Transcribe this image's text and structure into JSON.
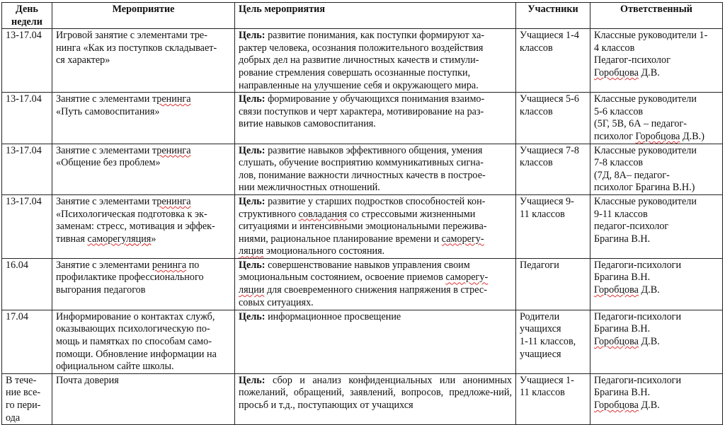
{
  "headers": [
    {
      "lines": [
        "День",
        "недели"
      ]
    },
    {
      "lines": [
        "Мероприятие"
      ]
    },
    {
      "lines": [
        "Цель мероприятия"
      ]
    },
    {
      "lines": [
        "Участники"
      ]
    },
    {
      "lines": [
        "Ответственный"
      ]
    }
  ],
  "goal_label": "Цель:",
  "rows": [
    {
      "date": [
        "13-17.04"
      ],
      "event": [
        "Игровой занятие с элементами тре-",
        "нинга «Как из поступков складывает-",
        "ся характер»"
      ],
      "goal": [
        " развитие понимания, как поступки формируют ха-",
        "рактер человека, осознания положительного воздействия",
        "добрых дел на развитие личностных качеств и стимули-",
        "рование стремления совершать осознанные поступки,",
        "направленные на улучшение себя и окружающего мира."
      ],
      "participants": [
        "Учащиеся 1-4",
        "классов"
      ],
      "responsible": [
        "Классные руководители 1-",
        "4 классов",
        "Педагог-психолог",
        "Горобцова Д.В."
      ]
    },
    {
      "date": [
        "13-17.04"
      ],
      "event": [
        "Занятие с элементами тренинга",
        "«Путь самовоспитания»"
      ],
      "goal": [
        " формирование у обучающихся понимания взаимо-",
        "связи поступков и черт характера, мотивирование на раз-",
        "витие навыков самовоспитания."
      ],
      "participants": [
        "Учащиеся 5-6",
        "классов"
      ],
      "responsible": [
        "Классные руководители",
        " 5-6  классов",
        "(5Г, 5В, 6А – педагог-",
        "психолог  Горобцова Д.В.)"
      ]
    },
    {
      "date": [
        "13-17.04"
      ],
      "event": [
        "Занятие с элементами тренинга",
        "«Общение без проблем»"
      ],
      "goal": [
        " развитие навыков эффективного общения, умения",
        "слушать, обучение восприятию коммуникативных сигна-",
        "лов, понимание важности личностных качеств в построе-",
        "нии межличностных отношений."
      ],
      "participants": [
        "Учащиеся 7-8",
        "классов"
      ],
      "responsible": [
        "Классные руководители",
        "7-8 классов",
        " (7Д, 8А– педагог-",
        "психолог Брагина В.Н.)"
      ]
    },
    {
      "date": [
        "13-17.04"
      ],
      "event": [
        "Занятие с элементами тренинга",
        "«Психологическая подготовка к эк-",
        "заменам: стресс, мотивация и эффек-",
        "тивная саморегуляция»"
      ],
      "goal": [
        " развитие у старших подростков способностей кон-",
        "структивного совладания со стрессовыми жизненными",
        "ситуациями и интенсивными эмоциональными пережива-",
        "ниями, рациональное планирование времени и саморегу-",
        "ляция эмоционального состояния."
      ],
      "participants": [
        "Учащиеся 9-",
        "11 классов"
      ],
      "responsible": [
        "Классные руководители",
        "9-11 классов",
        "педагог-психолог",
        "Брагина В.Н."
      ]
    },
    {
      "date": [
        "16.04"
      ],
      "event": [
        "Занятие с элементами ренинга  по",
        "профилактике профессионального",
        "выгорания педагогов"
      ],
      "goal": [
        " совершенствование навыков управления своим",
        "эмоциональным состоянием, освоение приемов саморегу-",
        "ляции для своевременного снижения напряжения в стрес-",
        "совых ситуациях."
      ],
      "participants": [
        "Педагоги"
      ],
      "responsible": [
        "Педагоги-психологи",
        "Брагина В.Н.",
        "Горобцова Д.В."
      ]
    },
    {
      "date": [
        "17.04"
      ],
      "event": [
        "Информирование о контактах служб,",
        "оказывающих психологическую по-",
        "мощь и памятках по способам само-",
        "помощи. Обновление информации на",
        "официальном сайте школы."
      ],
      "goal": [
        " информационное просвещение"
      ],
      "participants": [
        "Родители",
        "учащихся",
        "1-11 классов,",
        "учащиеся"
      ],
      "responsible": [
        "Педагоги-психологи",
        "Брагина В.Н.",
        "Горобцова Д.В."
      ]
    },
    {
      "date": [
        "В тече-",
        "ние все-",
        "го пери-",
        "ода"
      ],
      "event": [
        "Почта доверия"
      ],
      "goal": [
        " сбор и анализ конфиденциальных или анонимных пожеланий, обращений, заявлений, вопросов, предложе-ний, просьб и т.д., поступающих от учащихся"
      ],
      "participants": [
        "Учащиеся 1-",
        "11 классов"
      ],
      "responsible": [
        "Педагоги-психологи",
        "Брагина В.Н.",
        "Горобцова Д.В."
      ]
    }
  ]
}
